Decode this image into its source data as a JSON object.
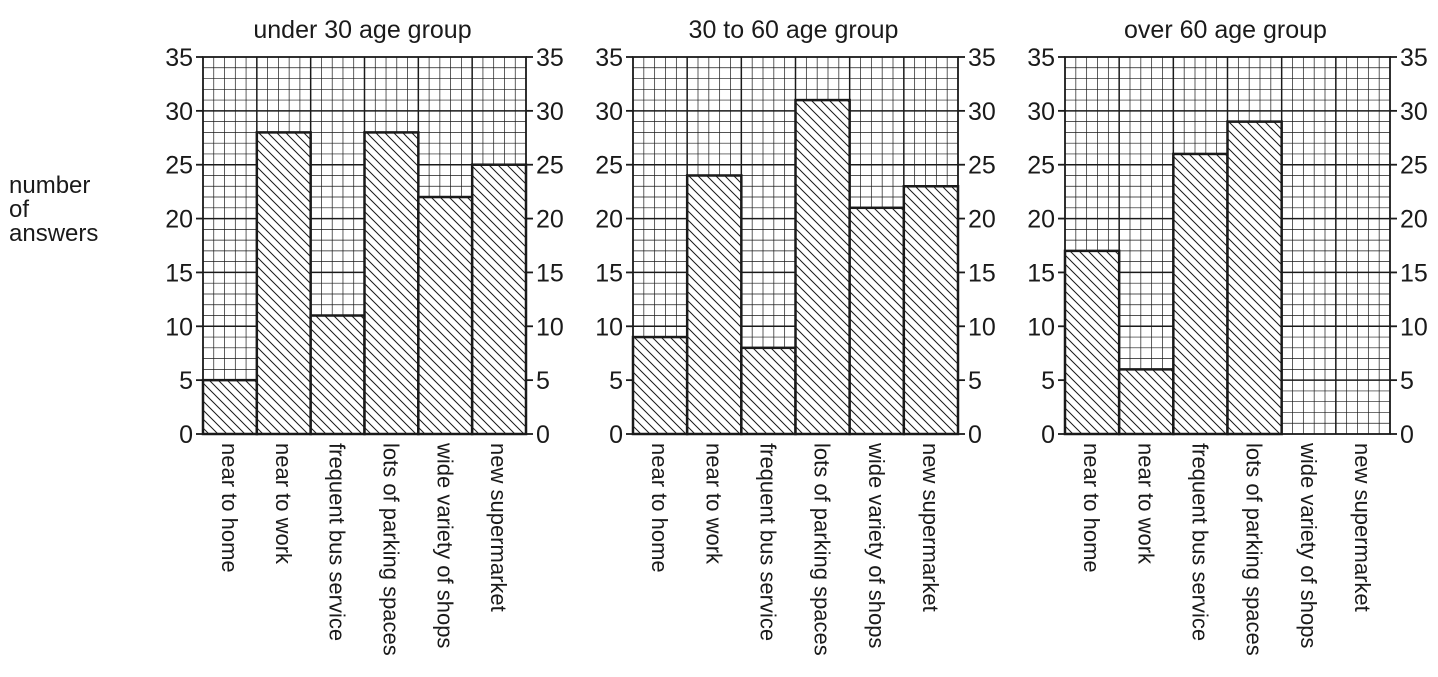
{
  "chart_data": [
    {
      "type": "bar",
      "title": "under 30 age group",
      "categories": [
        "near to home",
        "near to work",
        "frequent bus service",
        "lots of parking spaces",
        "wide variety of shops",
        "new supermarket"
      ],
      "values": [
        5,
        28,
        11,
        28,
        22,
        25
      ],
      "ylim": [
        0,
        35
      ],
      "yticks": [
        "0",
        "5",
        "10",
        "15",
        "20",
        "25",
        "30",
        "35"
      ],
      "grid": true,
      "fill_pattern": "diagonal-hatch"
    },
    {
      "type": "bar",
      "title": "30 to 60 age group",
      "categories": [
        "near to home",
        "near to work",
        "frequent bus service",
        "lots of parking spaces",
        "wide variety of shops",
        "new supermarket"
      ],
      "values": [
        9,
        24,
        8,
        31,
        21,
        23
      ],
      "ylim": [
        0,
        35
      ],
      "yticks": [
        "0",
        "5",
        "10",
        "15",
        "20",
        "25",
        "30",
        "35"
      ],
      "grid": true,
      "fill_pattern": "diagonal-hatch"
    },
    {
      "type": "bar",
      "title": "over 60 age group",
      "categories": [
        "near to home",
        "near to work",
        "frequent bus service",
        "lots of parking spaces",
        "wide variety of shops",
        "new supermarket"
      ],
      "values": [
        17,
        6,
        26,
        29,
        0,
        0
      ],
      "ylim": [
        0,
        35
      ],
      "yticks": [
        "0",
        "5",
        "10",
        "15",
        "20",
        "25",
        "30",
        "35"
      ],
      "grid": true,
      "fill_pattern": "diagonal-hatch"
    }
  ],
  "ylabel_lines": [
    "number",
    "of",
    "answers"
  ],
  "colors": {
    "ink": "#1a1a1a",
    "grid": "#222222",
    "background": "#ffffff"
  }
}
